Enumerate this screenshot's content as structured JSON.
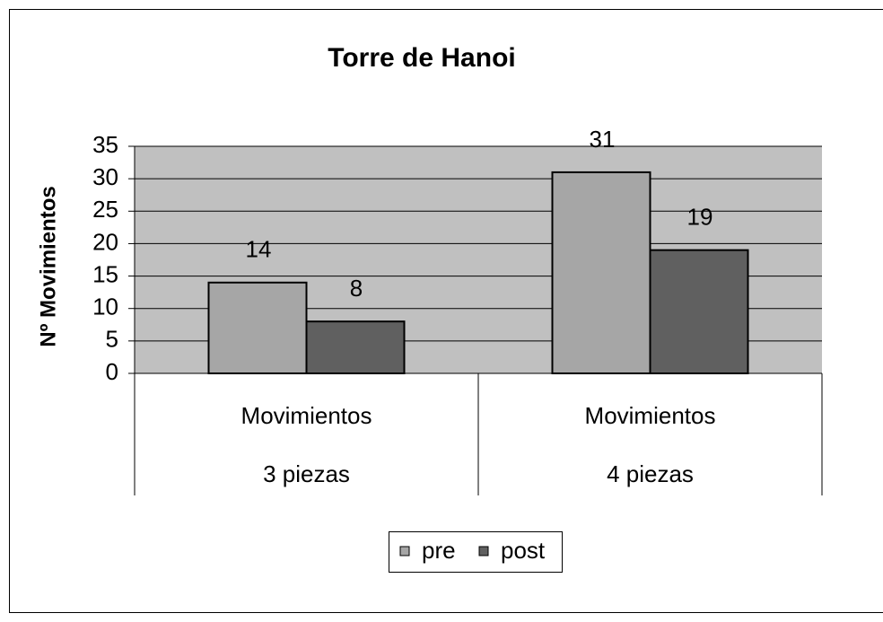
{
  "chart_data": {
    "type": "bar",
    "title": "Torre de Hanoi",
    "y_label": "Nº Movimientos",
    "categories": [
      [
        "Movimientos",
        "3 piezas"
      ],
      [
        "Movimientos",
        "4 piezas"
      ]
    ],
    "series": [
      {
        "name": "pre",
        "color": "#a6a6a6",
        "values": [
          14,
          31
        ]
      },
      {
        "name": "post",
        "color": "#606060",
        "values": [
          8,
          19
        ]
      }
    ],
    "ylim": [
      0,
      35
    ],
    "yticks": [
      0,
      5,
      10,
      15,
      20,
      25,
      30,
      35
    ],
    "grid": true,
    "legend": "bottom",
    "plot_background": "#c0c0c0"
  }
}
